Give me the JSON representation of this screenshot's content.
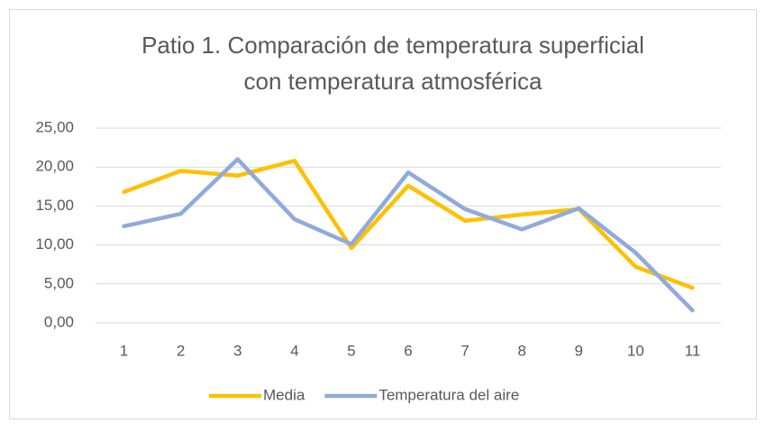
{
  "chart_data": {
    "type": "line",
    "title": [
      "Patio 1. Comparación de temperatura superficial",
      "con temperatura atmosférica"
    ],
    "categories": [
      "1",
      "2",
      "3",
      "4",
      "5",
      "6",
      "7",
      "8",
      "9",
      "10",
      "11"
    ],
    "series": [
      {
        "name": "Media",
        "color": "#ffc000",
        "values": [
          16.8,
          19.5,
          18.9,
          20.8,
          9.6,
          17.6,
          13.1,
          13.9,
          14.6,
          7.2,
          4.5
        ]
      },
      {
        "name": "Temperatura del aire",
        "color": "#8faadc",
        "values": [
          12.4,
          14.0,
          21.0,
          13.3,
          10.1,
          19.3,
          14.6,
          12.0,
          14.7,
          9.0,
          1.6
        ]
      }
    ],
    "ylim": [
      0,
      25
    ],
    "yticks": [
      {
        "value": 0,
        "label": "0,00"
      },
      {
        "value": 5,
        "label": "5,00"
      },
      {
        "value": 10,
        "label": "10,00"
      },
      {
        "value": 15,
        "label": "15,00"
      },
      {
        "value": 20,
        "label": "20,00"
      },
      {
        "value": 25,
        "label": "25,00"
      }
    ],
    "grid": true,
    "legend": "bottom"
  }
}
